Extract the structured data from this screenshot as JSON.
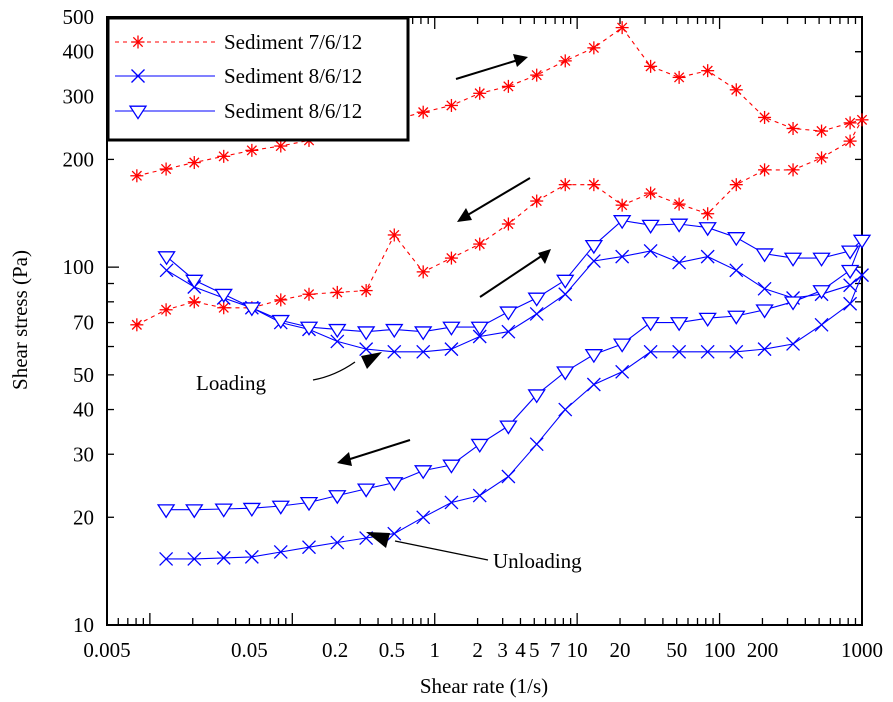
{
  "chart_data": {
    "type": "line",
    "title": "",
    "xlabel": "Shear rate (1/s)",
    "ylabel": "Shear stress (Pa)",
    "xscale": "log",
    "yscale": "log",
    "xlim": [
      0.005,
      1000
    ],
    "ylim": [
      10,
      500
    ],
    "grid": false,
    "legend_position": "top-left",
    "x_ticks": [
      {
        "v": 0.005,
        "label": "0.005"
      },
      {
        "v": 0.05,
        "label": "0.05"
      },
      {
        "v": 0.2,
        "label": "0.2"
      },
      {
        "v": 0.5,
        "label": "0.5"
      },
      {
        "v": 1,
        "label": "1"
      },
      {
        "v": 2,
        "label": "2"
      },
      {
        "v": 3,
        "label": "3"
      },
      {
        "v": 4,
        "label": "4"
      },
      {
        "v": 5,
        "label": "5"
      },
      {
        "v": 7,
        "label": "7"
      },
      {
        "v": 10,
        "label": "10"
      },
      {
        "v": 20,
        "label": "20"
      },
      {
        "v": 50,
        "label": "50"
      },
      {
        "v": 100,
        "label": "100"
      },
      {
        "v": 200,
        "label": "200"
      },
      {
        "v": 1000,
        "label": "1000"
      }
    ],
    "y_ticks": [
      {
        "v": 10,
        "label": "10"
      },
      {
        "v": 20,
        "label": "20"
      },
      {
        "v": 30,
        "label": "30"
      },
      {
        "v": 40,
        "label": "40"
      },
      {
        "v": 50,
        "label": "50"
      },
      {
        "v": 70,
        "label": "70"
      },
      {
        "v": 100,
        "label": "100"
      },
      {
        "v": 200,
        "label": "200"
      },
      {
        "v": 300,
        "label": "300"
      },
      {
        "v": 400,
        "label": "400"
      },
      {
        "v": 500,
        "label": "500"
      }
    ],
    "series": [
      {
        "name": "Sediment 7/6/12",
        "color": "#ff0000",
        "marker": "asterisk",
        "line": "dotted",
        "x": [
          0.0081,
          0.013,
          0.0205,
          0.033,
          0.052,
          0.083,
          0.131,
          0.207,
          0.33,
          0.52,
          0.83,
          1.31,
          2.07,
          3.29,
          5.2,
          8.25,
          13.1,
          20.7,
          32.8,
          52,
          82.5,
          131,
          207,
          328,
          520,
          825,
          1000,
          825,
          520,
          328,
          207,
          131,
          82.5,
          52,
          32.8,
          20.7,
          13.1,
          8.25,
          5.2,
          3.29,
          2.07,
          1.31,
          0.83,
          0.52,
          0.33,
          0.207,
          0.131,
          0.083,
          0.052,
          0.033,
          0.0205,
          0.013,
          0.0081
        ],
        "y": [
          69,
          76,
          80,
          77,
          77,
          81,
          84,
          85,
          86,
          123,
          97,
          106,
          116,
          132,
          153,
          170,
          170,
          149,
          161,
          150,
          141,
          170,
          187,
          187,
          202,
          225,
          258,
          253,
          240,
          244,
          262,
          313,
          354,
          339,
          364,
          467,
          410,
          377,
          344,
          320,
          306,
          283,
          271,
          258,
          248,
          238,
          226,
          218,
          212,
          204,
          196,
          188,
          180
        ]
      },
      {
        "name": "Sediment 8/6/12",
        "color": "#0000ff",
        "marker": "x",
        "line": "solid",
        "x": [
          0.0131,
          0.0205,
          0.033,
          0.052,
          0.083,
          0.131,
          0.207,
          0.33,
          0.52,
          0.83,
          1.31,
          2.07,
          3.29,
          5.2,
          8.25,
          13.1,
          20.7,
          32.8,
          52,
          82.5,
          131,
          207,
          328,
          520,
          825,
          1000,
          825,
          520,
          328,
          207,
          131,
          82.5,
          52,
          32.8,
          20.7,
          13.1,
          8.25,
          5.2,
          3.29,
          2.07,
          1.31,
          0.83,
          0.52,
          0.33,
          0.207,
          0.131,
          0.083,
          0.052,
          0.033,
          0.0205,
          0.013
        ],
        "y": [
          98,
          88,
          82,
          77,
          70,
          67,
          62,
          59,
          58,
          58,
          59,
          64,
          66,
          74,
          84,
          104,
          107,
          111,
          103,
          107,
          98,
          87,
          82,
          84,
          89,
          95,
          79,
          69,
          61,
          59,
          58,
          58,
          58,
          58,
          51,
          47,
          40,
          32,
          26,
          23,
          22,
          20,
          18,
          17.5,
          17,
          16.5,
          16,
          15.5,
          15.4,
          15.3,
          15.3
        ]
      },
      {
        "name": "Sediment 8/6/12",
        "color": "#0000ff",
        "marker": "triangle-down",
        "line": "solid",
        "x": [
          0.0131,
          0.0205,
          0.033,
          0.052,
          0.083,
          0.131,
          0.207,
          0.33,
          0.52,
          0.83,
          1.31,
          2.07,
          3.29,
          5.2,
          8.25,
          13.1,
          20.7,
          32.8,
          52,
          82.5,
          131,
          207,
          328,
          520,
          825,
          1000,
          825,
          520,
          328,
          207,
          131,
          82.5,
          52,
          32.8,
          20.7,
          13.1,
          8.25,
          5.2,
          3.29,
          2.07,
          1.31,
          0.83,
          0.52,
          0.33,
          0.207,
          0.131,
          0.083,
          0.052,
          0.033,
          0.0205,
          0.013
        ],
        "y": [
          107,
          92,
          84,
          77,
          71,
          68,
          67,
          66,
          67,
          66,
          68,
          68,
          75,
          82,
          92,
          115,
          135,
          131,
          132,
          129,
          121,
          109,
          106,
          106,
          111,
          119,
          98,
          86,
          80,
          76,
          73,
          72,
          70,
          70,
          61,
          57,
          51,
          44,
          36,
          32,
          28,
          27,
          25,
          24,
          23,
          22,
          21.5,
          21.2,
          21.1,
          21,
          21
        ]
      }
    ],
    "annotations": [
      {
        "text": "Loading",
        "x": 0.55,
        "y": 58
      },
      {
        "text": "Unloading",
        "x": 0.35,
        "y": 17.5
      }
    ]
  }
}
